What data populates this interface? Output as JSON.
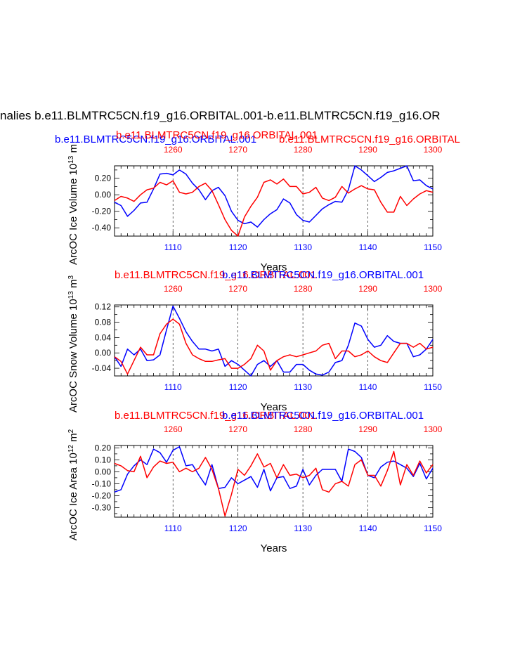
{
  "title": "nalies b.e11.BLMTRC5CN.f19_g16.ORBITAL.001-b.e11.BLMTRC5CN.f19_g16.OR",
  "top_labels": {
    "blue": "b.e11.BLMTRC5CN.f19_g16.ORBITAL.001",
    "red": "b.e11.BLMTRC5CN.f19_g16.ORBITAL",
    "red_over": "b.e11.BLMTRC5CN.f19_g16.ORBITAL.001"
  },
  "colors": {
    "blue": "#0000ff",
    "red": "#ff0000",
    "axis": "#000000",
    "grid": "#000000"
  },
  "chart_data": [
    {
      "type": "line",
      "ylabel": "ArcOC Ice Volume 10",
      "ylabel_exp": "13",
      "ylabel_unit": "m",
      "xlabel": "Years",
      "title_red": "",
      "title_blue": "",
      "x_bottom_range": [
        1101,
        1150
      ],
      "x_top_range": [
        1251,
        1300
      ],
      "x_bottom_ticks": [
        "1110",
        "1120",
        "1130",
        "1140",
        "1150"
      ],
      "x_top_ticks": [
        "1260",
        "1270",
        "1280",
        "1290",
        "1300"
      ],
      "ylim": [
        -0.5,
        0.35
      ],
      "y_ticks": [
        0.2,
        0.0,
        -0.2,
        -0.4
      ],
      "y_tick_labels": [
        "0.20",
        "0.00",
        "-0.20",
        "-0.40"
      ],
      "grid": "vertical dashed at 1110,1120,1130,1140",
      "series": [
        {
          "color": "blue",
          "x_axis": "bottom",
          "x": [
            1101,
            1102,
            1103,
            1104,
            1105,
            1106,
            1107,
            1108,
            1109,
            1110,
            1111,
            1112,
            1113,
            1114,
            1115,
            1116,
            1117,
            1118,
            1119,
            1120,
            1121,
            1122,
            1123,
            1124,
            1125,
            1126,
            1127,
            1128,
            1129,
            1130,
            1131,
            1132,
            1133,
            1134,
            1135,
            1136,
            1137,
            1138,
            1139,
            1140,
            1141,
            1142,
            1143,
            1144,
            1145,
            1146,
            1147,
            1148,
            1149,
            1150
          ],
          "values": [
            -0.09,
            -0.13,
            -0.26,
            -0.19,
            -0.1,
            -0.09,
            0.07,
            0.25,
            0.26,
            0.24,
            0.3,
            0.25,
            0.14,
            0.06,
            -0.06,
            0.05,
            0.09,
            -0.01,
            -0.2,
            -0.31,
            -0.35,
            -0.33,
            -0.39,
            -0.3,
            -0.23,
            -0.18,
            -0.05,
            -0.1,
            -0.24,
            -0.31,
            -0.33,
            -0.25,
            -0.17,
            -0.12,
            -0.08,
            -0.09,
            0.06,
            0.35,
            0.3,
            0.23,
            0.16,
            0.21,
            0.27,
            0.29,
            0.32,
            0.35,
            0.17,
            0.18,
            0.11,
            0.07
          ]
        },
        {
          "color": "red",
          "x_axis": "top",
          "x": [
            1251,
            1252,
            1253,
            1254,
            1255,
            1256,
            1257,
            1258,
            1259,
            1260,
            1261,
            1262,
            1263,
            1264,
            1265,
            1266,
            1267,
            1268,
            1269,
            1270,
            1271,
            1272,
            1273,
            1274,
            1275,
            1276,
            1277,
            1278,
            1279,
            1280,
            1281,
            1282,
            1283,
            1284,
            1285,
            1286,
            1287,
            1288,
            1289,
            1290,
            1291,
            1292,
            1293,
            1294,
            1295,
            1296,
            1297,
            1298,
            1299,
            1300
          ],
          "values": [
            -0.07,
            -0.02,
            -0.04,
            -0.08,
            0.0,
            0.06,
            0.08,
            0.15,
            0.12,
            0.17,
            0.03,
            0.01,
            0.03,
            0.1,
            0.14,
            0.05,
            -0.12,
            -0.3,
            -0.43,
            -0.5,
            -0.27,
            -0.14,
            -0.03,
            0.15,
            0.18,
            0.13,
            0.19,
            0.1,
            0.1,
            0.01,
            0.03,
            0.09,
            -0.04,
            -0.07,
            -0.03,
            0.1,
            0.02,
            0.07,
            0.11,
            0.07,
            0.06,
            -0.09,
            -0.21,
            -0.21,
            -0.02,
            -0.13,
            -0.05,
            0.01,
            0.05,
            0.03
          ]
        }
      ]
    },
    {
      "type": "line",
      "ylabel": "ArcOC Snow Volume 10",
      "ylabel_exp": "13",
      "ylabel_unit": "m",
      "ylabel_unit_exp": "3",
      "xlabel": "Years",
      "title_red": "b.e11.BLMTRC5CN.f19_g16.ORBITAL.001",
      "title_blue": "b.e11.BLMTRC5CN.f19_g16.ORBITAL.001",
      "x_bottom_range": [
        1101,
        1150
      ],
      "x_top_range": [
        1251,
        1300
      ],
      "x_bottom_ticks": [
        "1110",
        "1120",
        "1130",
        "1140",
        "1150"
      ],
      "x_top_ticks": [
        "1260",
        "1270",
        "1280",
        "1290",
        "1300"
      ],
      "ylim": [
        -0.06,
        0.125
      ],
      "y_ticks": [
        0.12,
        0.08,
        0.04,
        0.0,
        -0.04
      ],
      "y_tick_labels": [
        "0.12",
        "0.08",
        "0.04",
        "0.00",
        "-0.04"
      ],
      "grid": "vertical dashed at 1110,1120,1130,1140",
      "series": [
        {
          "color": "blue",
          "x_axis": "bottom",
          "x": [
            1101,
            1102,
            1103,
            1104,
            1105,
            1106,
            1107,
            1108,
            1109,
            1110,
            1111,
            1112,
            1113,
            1114,
            1115,
            1116,
            1117,
            1118,
            1119,
            1120,
            1121,
            1122,
            1123,
            1124,
            1125,
            1126,
            1127,
            1128,
            1129,
            1130,
            1131,
            1132,
            1133,
            1134,
            1135,
            1136,
            1137,
            1138,
            1139,
            1140,
            1141,
            1142,
            1143,
            1144,
            1145,
            1146,
            1147,
            1148,
            1149,
            1150
          ],
          "values": [
            -0.01,
            -0.035,
            0.01,
            -0.005,
            0.01,
            -0.02,
            -0.018,
            -0.005,
            0.06,
            0.122,
            0.09,
            0.055,
            0.03,
            0.01,
            0.01,
            0.005,
            0.01,
            -0.035,
            -0.02,
            -0.03,
            -0.045,
            -0.06,
            -0.03,
            -0.02,
            -0.035,
            -0.02,
            -0.05,
            -0.05,
            -0.03,
            -0.03,
            -0.045,
            -0.055,
            -0.058,
            -0.05,
            -0.025,
            -0.02,
            0.02,
            0.078,
            0.07,
            0.035,
            0.015,
            0.02,
            0.045,
            0.03,
            0.025,
            0.025,
            -0.01,
            -0.005,
            0.01,
            0.035
          ]
        },
        {
          "color": "red",
          "x_axis": "top",
          "x": [
            1251,
            1252,
            1253,
            1254,
            1255,
            1256,
            1257,
            1258,
            1259,
            1260,
            1261,
            1262,
            1263,
            1264,
            1265,
            1266,
            1267,
            1268,
            1269,
            1270,
            1271,
            1272,
            1273,
            1274,
            1275,
            1276,
            1277,
            1278,
            1279,
            1280,
            1281,
            1282,
            1283,
            1284,
            1285,
            1286,
            1287,
            1288,
            1289,
            1290,
            1291,
            1292,
            1293,
            1294,
            1295,
            1296,
            1297,
            1298,
            1299,
            1300
          ],
          "values": [
            -0.01,
            -0.022,
            -0.055,
            -0.02,
            0.015,
            -0.005,
            -0.005,
            0.05,
            0.075,
            0.088,
            0.075,
            0.025,
            -0.005,
            -0.015,
            -0.022,
            -0.022,
            -0.018,
            -0.015,
            -0.04,
            -0.04,
            -0.03,
            -0.015,
            0.02,
            0.005,
            -0.045,
            -0.02,
            -0.01,
            -0.005,
            -0.01,
            -0.005,
            0.0,
            0.005,
            0.02,
            0.025,
            -0.015,
            0.005,
            0.005,
            -0.01,
            -0.005,
            0.005,
            -0.01,
            -0.02,
            -0.025,
            0.0,
            0.025,
            0.025,
            0.015,
            0.025,
            0.01,
            0.015
          ]
        }
      ]
    },
    {
      "type": "line",
      "ylabel": "ArcOC Ice Area 10",
      "ylabel_exp": "12",
      "ylabel_unit": "m",
      "ylabel_unit_exp": "2",
      "xlabel": "Years",
      "title_red": "b.e11.BLMTRC5CN.f19_g16.ORBITAL.001",
      "title_blue": "b.e11.BLMTRC5CN.f19_g16.ORBITAL.001",
      "x_bottom_range": [
        1101,
        1150
      ],
      "x_top_range": [
        1251,
        1300
      ],
      "x_bottom_ticks": [
        "1110",
        "1120",
        "1130",
        "1140",
        "1150"
      ],
      "x_top_ticks": [
        "1260",
        "1270",
        "1280",
        "1290",
        "1300"
      ],
      "ylim": [
        -0.38,
        0.22
      ],
      "y_ticks": [
        0.2,
        0.1,
        0.0,
        -0.1,
        -0.2,
        -0.3
      ],
      "y_tick_labels": [
        "0.20",
        "0.10",
        "0.00",
        "-0.10",
        "-0.20",
        "-0.30"
      ],
      "grid": "vertical dashed at 1110,1120,1130,1140",
      "series": [
        {
          "color": "blue",
          "x_axis": "bottom",
          "x": [
            1101,
            1102,
            1103,
            1104,
            1105,
            1106,
            1107,
            1108,
            1109,
            1110,
            1111,
            1112,
            1113,
            1114,
            1115,
            1116,
            1117,
            1118,
            1119,
            1120,
            1121,
            1122,
            1123,
            1124,
            1125,
            1126,
            1127,
            1128,
            1129,
            1130,
            1131,
            1132,
            1133,
            1134,
            1135,
            1136,
            1137,
            1138,
            1139,
            1140,
            1141,
            1142,
            1143,
            1144,
            1145,
            1146,
            1147,
            1148,
            1149,
            1150
          ],
          "values": [
            -0.17,
            -0.15,
            -0.02,
            0.05,
            0.1,
            0.06,
            0.19,
            0.16,
            0.08,
            0.18,
            0.21,
            0.05,
            0.06,
            -0.03,
            -0.11,
            0.06,
            -0.14,
            -0.13,
            -0.05,
            -0.1,
            -0.07,
            -0.04,
            -0.13,
            0.02,
            -0.16,
            -0.05,
            -0.04,
            -0.14,
            -0.12,
            0.02,
            -0.11,
            -0.03,
            0.02,
            0.02,
            0.02,
            -0.08,
            0.19,
            0.17,
            0.12,
            -0.03,
            -0.05,
            0.04,
            0.08,
            0.09,
            0.06,
            0.03,
            -0.04,
            0.07,
            -0.06,
            0.03
          ]
        },
        {
          "color": "red",
          "x_axis": "top",
          "x": [
            1251,
            1252,
            1253,
            1254,
            1255,
            1256,
            1257,
            1258,
            1259,
            1260,
            1261,
            1262,
            1263,
            1264,
            1265,
            1266,
            1267,
            1268,
            1269,
            1270,
            1271,
            1272,
            1273,
            1274,
            1275,
            1276,
            1277,
            1278,
            1279,
            1280,
            1281,
            1282,
            1283,
            1284,
            1285,
            1286,
            1287,
            1288,
            1289,
            1290,
            1291,
            1292,
            1293,
            1294,
            1295,
            1296,
            1297,
            1298,
            1299,
            1300
          ],
          "values": [
            0.07,
            0.05,
            0.01,
            0.0,
            0.13,
            -0.05,
            0.04,
            0.09,
            0.07,
            0.08,
            0.0,
            0.03,
            0.0,
            0.03,
            0.12,
            0.02,
            -0.14,
            -0.37,
            -0.19,
            0.02,
            -0.03,
            0.05,
            0.15,
            0.04,
            0.07,
            -0.05,
            0.06,
            -0.03,
            -0.02,
            -0.05,
            -0.03,
            0.03,
            -0.15,
            -0.17,
            -0.1,
            -0.08,
            -0.12,
            0.06,
            0.1,
            -0.03,
            -0.03,
            -0.12,
            0.01,
            0.17,
            -0.11,
            0.06,
            -0.03,
            0.09,
            -0.01,
            0.06
          ]
        }
      ]
    }
  ]
}
